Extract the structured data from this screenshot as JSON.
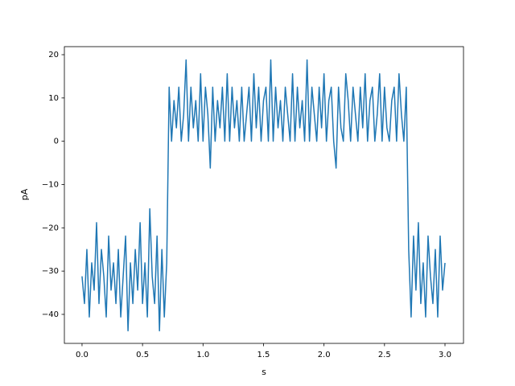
{
  "chart_data": {
    "type": "line",
    "xlabel": "s",
    "ylabel": "pA",
    "x": [
      0,
      0.02,
      0.04,
      0.06,
      0.08,
      0.1,
      0.12,
      0.14,
      0.16,
      0.18,
      0.2,
      0.22,
      0.24,
      0.26,
      0.28,
      0.3,
      0.32,
      0.34,
      0.36,
      0.38,
      0.4,
      0.42,
      0.44,
      0.46,
      0.48,
      0.5,
      0.52,
      0.54,
      0.56,
      0.58,
      0.6,
      0.62,
      0.64,
      0.66,
      0.68,
      0.7,
      0.72,
      0.74,
      0.76,
      0.78,
      0.8,
      0.82,
      0.84,
      0.86,
      0.88,
      0.9,
      0.92,
      0.94,
      0.96,
      0.98,
      1,
      1.02,
      1.04,
      1.06,
      1.08,
      1.1,
      1.12,
      1.14,
      1.16,
      1.18,
      1.2,
      1.22,
      1.24,
      1.26,
      1.28,
      1.3,
      1.32,
      1.34,
      1.36,
      1.38,
      1.4,
      1.42,
      1.44,
      1.46,
      1.48,
      1.5,
      1.52,
      1.54,
      1.56,
      1.58,
      1.6,
      1.62,
      1.64,
      1.66,
      1.68,
      1.7,
      1.72,
      1.74,
      1.76,
      1.78,
      1.8,
      1.82,
      1.84,
      1.86,
      1.88,
      1.9,
      1.92,
      1.94,
      1.96,
      1.98,
      2,
      2.02,
      2.04,
      2.06,
      2.08,
      2.1,
      2.12,
      2.14,
      2.16,
      2.18,
      2.2,
      2.22,
      2.24,
      2.26,
      2.28,
      2.3,
      2.32,
      2.34,
      2.36,
      2.38,
      2.4,
      2.42,
      2.44,
      2.46,
      2.48,
      2.5,
      2.52,
      2.54,
      2.56,
      2.58,
      2.6,
      2.62,
      2.64,
      2.66,
      2.68,
      2.7,
      2.72,
      2.74,
      2.76,
      2.78,
      2.8,
      2.82,
      2.84,
      2.86,
      2.88,
      2.9,
      2.92,
      2.94,
      2.96,
      2.98,
      3
    ],
    "series": [
      {
        "color": "#1f77b4",
        "values": [
          -31.2,
          -37.5,
          -25,
          -40.6,
          -28.1,
          -34.4,
          -18.8,
          -37.5,
          -25,
          -31.2,
          -40.6,
          -21.9,
          -34.4,
          -28.1,
          -37.5,
          -25,
          -40.6,
          -31.2,
          -21.9,
          -43.8,
          -28.1,
          -37.5,
          -25,
          -34.4,
          -18.8,
          -37.5,
          -28.1,
          -40.6,
          -15.6,
          -31.2,
          -37.5,
          -21.9,
          -43.8,
          -25,
          -40.6,
          -28.1,
          12.5,
          0,
          9.4,
          3.1,
          12.5,
          0,
          6.2,
          18.8,
          0,
          12.5,
          3.1,
          9.4,
          0,
          15.6,
          0,
          12.5,
          6.2,
          -6.2,
          12.5,
          0,
          9.4,
          3.1,
          12.5,
          0,
          15.6,
          0,
          12.5,
          3.1,
          9.4,
          0,
          12.5,
          0,
          6.2,
          12.5,
          0,
          15.6,
          3.1,
          12.5,
          0,
          9.4,
          12.5,
          0,
          18.8,
          0,
          12.5,
          3.1,
          9.4,
          0,
          12.5,
          6.2,
          0,
          15.6,
          0,
          12.5,
          3.1,
          9.4,
          0,
          18.8,
          0,
          12.5,
          6.2,
          0,
          12.5,
          3.1,
          15.6,
          0,
          9.4,
          12.5,
          0,
          -6.2,
          12.5,
          3.1,
          0,
          15.6,
          9.4,
          0,
          12.5,
          6.2,
          0,
          12.5,
          3.1,
          15.6,
          0,
          9.4,
          12.5,
          0,
          6.2,
          15.6,
          0,
          12.5,
          3.1,
          0,
          9.4,
          12.5,
          0,
          15.6,
          6.2,
          0,
          12.5,
          -25,
          -40.6,
          -21.9,
          -34.4,
          -18.8,
          -37.5,
          -28.1,
          -40.6,
          -21.9,
          -31.2,
          -37.5,
          -25,
          -40.6,
          -21.9,
          -34.4,
          -28.1
        ]
      }
    ],
    "xlim": [
      -0.146,
      3.153
    ],
    "ylim": [
      -46.7,
      21.86
    ],
    "xticks": [
      {
        "value": 0,
        "label": "0.0"
      },
      0.5,
      {
        "value": 1,
        "label": "1.0"
      },
      1.5,
      {
        "value": 2,
        "label": "2.0"
      },
      2.5,
      {
        "value": 3,
        "label": "3.0"
      }
    ],
    "yticks": [
      {
        "value": -40,
        "label": "−40"
      },
      {
        "value": -30,
        "label": "−30"
      },
      {
        "value": -20,
        "label": "−20"
      },
      {
        "value": -10,
        "label": "−10"
      },
      0,
      10,
      20
    ],
    "grid": false
  }
}
